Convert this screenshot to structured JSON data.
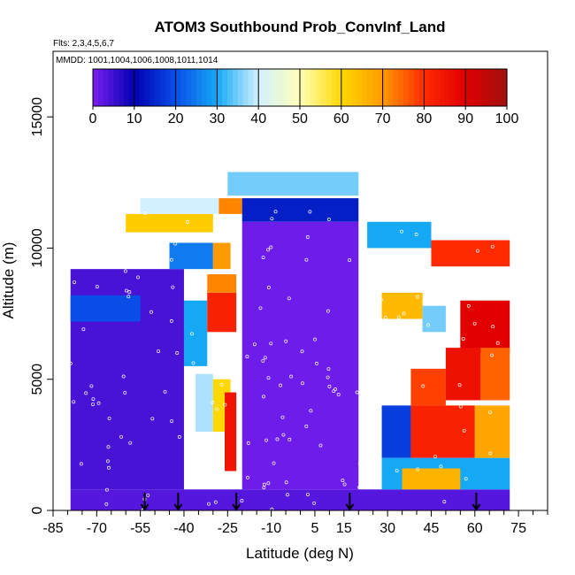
{
  "chart_data": {
    "type": "heatmap",
    "title": "ATOM3 Southbound Prob_ConvInf_Land",
    "subtitle_flights": "Flts: 2,3,4,5,6,7",
    "subtitle_dates": "MMDD: 1001,1004,1006,1008,1011,1014",
    "xlabel": "Latitude (deg N)",
    "ylabel": "Altitude (m)",
    "xlim": [
      -85,
      85
    ],
    "ylim": [
      0,
      17500
    ],
    "x_tick_labels": [
      "-85",
      "-70",
      "-55",
      "-40",
      "-25",
      "-10",
      "5",
      "15",
      "30",
      "45",
      "60",
      "75"
    ],
    "x_tick_values": [
      -85,
      -70,
      -55,
      -40,
      -25,
      -10,
      5,
      15,
      30,
      45,
      60,
      75
    ],
    "y_tick_labels": [
      "0",
      "5000",
      "10000",
      "15000"
    ],
    "y_tick_values": [
      0,
      5000,
      10000,
      15000
    ],
    "colorbar": {
      "min": 0,
      "max": 100,
      "tick_labels": [
        "0",
        "10",
        "20",
        "30",
        "40",
        "50",
        "60",
        "70",
        "80",
        "90",
        "100"
      ],
      "tick_values": [
        0,
        10,
        20,
        30,
        40,
        50,
        60,
        70,
        80,
        90,
        100
      ],
      "colors": [
        "#7a1ff0",
        "#0000b0",
        "#0a4ee8",
        "#14a8f5",
        "#d2f0ff",
        "#ffffb8",
        "#ffd800",
        "#ff9a00",
        "#ff2a00",
        "#e00000",
        "#a01010"
      ]
    },
    "sounding_marker_latitudes": [
      -53.5,
      -42,
      -22,
      17,
      60.5
    ],
    "cells": [
      {
        "lat": [
          -79,
          72
        ],
        "alt": [
          0,
          800
        ],
        "value": 3
      },
      {
        "lat": [
          -79,
          -40
        ],
        "alt": [
          800,
          9200
        ],
        "value": 4
      },
      {
        "lat": [
          -40,
          -32
        ],
        "alt": [
          5500,
          8000
        ],
        "value": 30
      },
      {
        "lat": [
          -32,
          -22
        ],
        "alt": [
          6800,
          8300
        ],
        "value": 82
      },
      {
        "lat": [
          -32,
          -22
        ],
        "alt": [
          8300,
          9000
        ],
        "value": 72
      },
      {
        "lat": [
          -36,
          -30
        ],
        "alt": [
          3000,
          5200
        ],
        "value": 38
      },
      {
        "lat": [
          -30,
          -24
        ],
        "alt": [
          3000,
          5000
        ],
        "value": 60
      },
      {
        "lat": [
          -26,
          -22
        ],
        "alt": [
          1500,
          4500
        ],
        "value": 85
      },
      {
        "lat": [
          -45,
          -30
        ],
        "alt": [
          9200,
          10200
        ],
        "value": 25
      },
      {
        "lat": [
          -30,
          -24
        ],
        "alt": [
          9200,
          10200
        ],
        "value": 70
      },
      {
        "lat": [
          -60,
          -30
        ],
        "alt": [
          10600,
          11300
        ],
        "value": 62
      },
      {
        "lat": [
          -55,
          -25
        ],
        "alt": [
          11300,
          11900
        ],
        "value": 40
      },
      {
        "lat": [
          -28,
          -20
        ],
        "alt": [
          11300,
          11900
        ],
        "value": 72
      },
      {
        "lat": [
          -20,
          20
        ],
        "alt": [
          11000,
          11900
        ],
        "value": 14
      },
      {
        "lat": [
          -25,
          20
        ],
        "alt": [
          12000,
          12900
        ],
        "value": 35
      },
      {
        "lat": [
          23,
          45
        ],
        "alt": [
          10000,
          11000
        ],
        "value": 30
      },
      {
        "lat": [
          45,
          72
        ],
        "alt": [
          9300,
          10300
        ],
        "value": 80
      },
      {
        "lat": [
          28,
          42
        ],
        "alt": [
          7300,
          8300
        ],
        "value": 65
      },
      {
        "lat": [
          42,
          50
        ],
        "alt": [
          6800,
          7800
        ],
        "value": 35
      },
      {
        "lat": [
          55,
          72
        ],
        "alt": [
          6000,
          8000
        ],
        "value": 90
      },
      {
        "lat": [
          38,
          50
        ],
        "alt": [
          4000,
          5400
        ],
        "value": 78
      },
      {
        "lat": [
          50,
          62
        ],
        "alt": [
          4200,
          6200
        ],
        "value": 86
      },
      {
        "lat": [
          62,
          72
        ],
        "alt": [
          4200,
          6200
        ],
        "value": 75
      },
      {
        "lat": [
          28,
          38
        ],
        "alt": [
          2000,
          4000
        ],
        "value": 18
      },
      {
        "lat": [
          38,
          60
        ],
        "alt": [
          2000,
          4000
        ],
        "value": 82
      },
      {
        "lat": [
          60,
          72
        ],
        "alt": [
          2000,
          4000
        ],
        "value": 68
      },
      {
        "lat": [
          28,
          72
        ],
        "alt": [
          800,
          2000
        ],
        "value": 30
      },
      {
        "lat": [
          35,
          55
        ],
        "alt": [
          800,
          1600
        ],
        "value": 66
      },
      {
        "lat": [
          -79,
          -55
        ],
        "alt": [
          7200,
          8200
        ],
        "value": 20
      },
      {
        "lat": [
          -20,
          20
        ],
        "alt": [
          800,
          11000
        ],
        "value": 1
      }
    ]
  }
}
